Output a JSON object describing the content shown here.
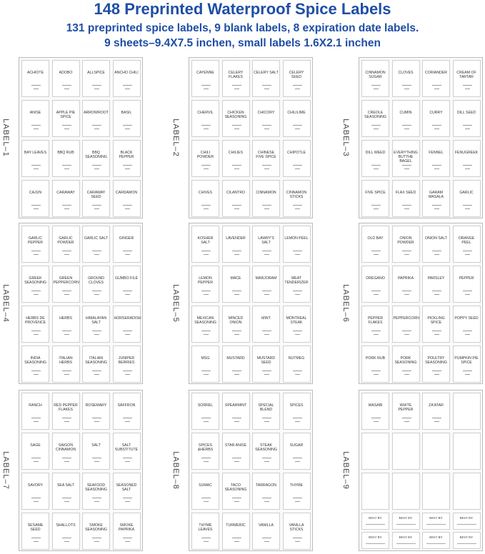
{
  "header": {
    "title": "148 Preprinted Waterproof Spice Labels",
    "subtitle": "131 preprinted spice labels, 9 blank labels, 8 expiration date labels.",
    "details": "9 sheets–9.4X7.5 inchen, small labels 1.6X2.1 inchen"
  },
  "sheets": [
    {
      "label": "LABEL–1",
      "labels": [
        "ACHIOTE",
        "ADOBO",
        "ALLSPICE",
        "ANCHO CHILI",
        "ANISE",
        "APPLE PIE SPICE",
        "ARROWROOT",
        "BASIL",
        "BAY LEAVES",
        "BBQ RUB",
        "BBQ SEASONING",
        "BLACK PEPPER",
        "CAJUN",
        "CARAWAY",
        "CARAWAY SEED",
        "CARDAMON"
      ]
    },
    {
      "label": "LABEL–2",
      "labels": [
        "CAYENNE",
        "CELERY FLAKES",
        "CELERY SALT",
        "CELERY SEED",
        "CHERVIL",
        "CHICKEN SEASONING",
        "CHICORY",
        "CHILILIME",
        "CHILI POWDER",
        "CHILIES",
        "CHINESE FIVE SPICE",
        "CHIPOTLE",
        "CHIVES",
        "CILANTRO",
        "CINNAMON",
        "CINNAMON STICKS"
      ]
    },
    {
      "label": "LABEL–3",
      "labels": [
        "CINNAMON SUGAR",
        "CLOVES",
        "CORIANDER",
        "CREAM OF TARTAR",
        "CREOLE SEASONING",
        "CUMIN",
        "CURRY",
        "DILL SEED",
        "DILL WEED",
        "EVERYTHING BUTTHE BAGEL",
        "FENNEL",
        "FENUGREEK",
        "FIVE SPICE",
        "FLAX SEED",
        "GARAM MASALA",
        "GARLIC"
      ]
    },
    {
      "label": "LABEL–4",
      "labels": [
        "GARLIC PEPPER",
        "GARLIC POWDER",
        "GARLIC SALT",
        "GINGER",
        "GREEK SEASONING",
        "GREEN PEPPERCORN",
        "GROUND CLOVES",
        "GUMBO FILÉ",
        "HERBS DE PROVENCE",
        "HERBS",
        "HIMALAYAN SALT",
        "HORSERADISH",
        "INDIA SEASONING",
        "ITALIAN HERBS",
        "ITALIAN SEASONING",
        "JUNIPER BERRIES"
      ]
    },
    {
      "label": "LABEL–5",
      "labels": [
        "KOSHER SALT",
        "LAVENDER",
        "LAWRY'S SALT",
        "LEMON PEEL",
        "LEMON PEPPER",
        "MACE",
        "MARJORAM",
        "MEAT TENDERIZER",
        "MEXICAN SEASONING",
        "MINCED ONION",
        "MINT",
        "MONTREAL STEAK",
        "MSG",
        "MUSTARD",
        "MUSTARD SEED",
        "NUTMEG"
      ]
    },
    {
      "label": "LABEL–6",
      "labels": [
        "OLD BAY",
        "ONION POWDER",
        "ONION SALT",
        "ORANGE PEEL",
        "OREGANO",
        "PAPRIKA",
        "PARSLEY",
        "PEPPER",
        "PEPPER FLAKES",
        "PEPPERCORN",
        "PICKLING SPICE",
        "POPPY SEED",
        "PORK RUB",
        "PORK SEASONING",
        "POULTRY SEASONING",
        "PUMPKIN PIE SPICE"
      ]
    },
    {
      "label": "LABEL–7",
      "labels": [
        "RANCH",
        "RED PEPPER FLAKES",
        "ROSEMARY",
        "SAFFRON",
        "SAGE",
        "SAIGON CINNAMON",
        "SALT",
        "SALT SUBSTITUTE",
        "SAVORY",
        "SEA SALT",
        "SEAFOOD SEASONING",
        "SEASONED SALT",
        "SESAME SEED",
        "SHALLOTS",
        "SMOKE SEASONING",
        "SMOKE PAPRIKA"
      ]
    },
    {
      "label": "LABEL–8",
      "labels": [
        "SORREL",
        "SPEARMINT",
        "SPECIAL BLEND",
        "SPICES",
        "SPICES &HERBS",
        "STAR ANISE",
        "STEAK SEASONING",
        "SUGAR",
        "SUMAC",
        "TACO SEASONING",
        "TARRAGON",
        "THYME",
        "THYME LEAVES",
        "TURMERIC",
        "VANILLA",
        "VANILLA STICKS"
      ]
    },
    {
      "label": "LABEL–9",
      "labels": [
        "WASABI",
        "WHITE PEPPER",
        "ZA'ATAR"
      ],
      "expiry_labels": [
        "BEST BY",
        "BEST BY",
        "BEST BY",
        "BEST BY",
        "BEST BY",
        "BEST BY",
        "BEST BY",
        "BEST BY"
      ]
    }
  ]
}
